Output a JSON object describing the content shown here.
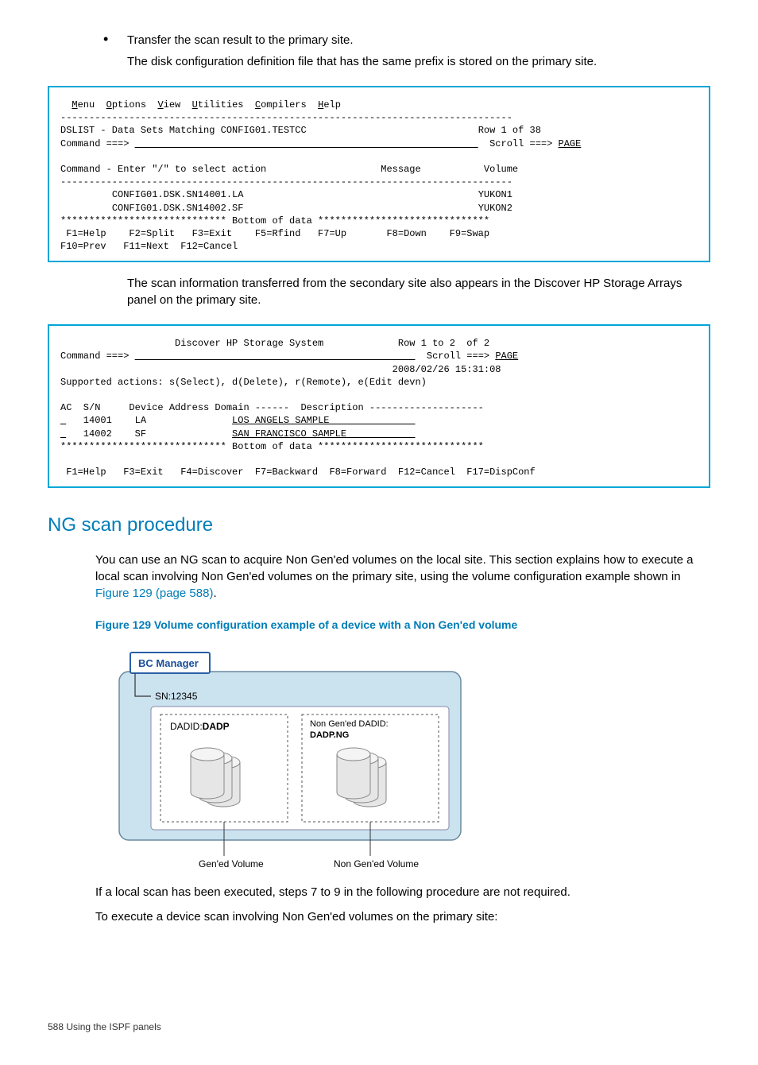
{
  "bullet": {
    "text": "Transfer the scan result to the primary site.",
    "sub": "The disk configuration definition file that has the same prefix is stored on the primary site."
  },
  "terminal1": {
    "menu": [
      "Menu",
      "Options",
      "View",
      "Utilities",
      "Compilers",
      "Help"
    ],
    "hr": "-------------------------------------------------------------------------------",
    "title": "DSLIST - Data Sets Matching CONFIG01.TESTCC",
    "rowinfo": "Row 1 of 38",
    "cmd_prompt": "Command ===>",
    "cmd_line": "                                                            ",
    "scroll": "Scroll ===>",
    "scroll_val": "PAGE",
    "action_label": "Command - Enter \"/\" to select action",
    "col_msg": "Message",
    "col_vol": "Volume",
    "rows": [
      {
        "ds": "CONFIG01.DSK.SN14001.LA",
        "vol": "YUKON1"
      },
      {
        "ds": "CONFIG01.DSK.SN14002.SF",
        "vol": "YUKON2"
      }
    ],
    "bottom": "***************************** Bottom of data ******************************",
    "fkeys1": " F1=Help    F2=Split   F3=Exit    F5=Rfind   F7=Up       F8=Down    F9=Swap",
    "fkeys2": "F10=Prev   F11=Next  F12=Cancel"
  },
  "mid_para": "The scan information transferred from the secondary site also appears in the Discover HP Storage Arrays panel on the primary site.",
  "terminal2": {
    "title": "Discover HP Storage System",
    "rowinfo": "Row 1 to 2  of 2",
    "cmd_prompt": "Command ===>",
    "scroll": "Scroll ===>",
    "scroll_val": "PAGE",
    "timestamp": "2008/02/26 15:31:08",
    "supported": "Supported actions: s(Select), d(Delete), r(Remote), e(Edit devn)",
    "header": "AC  S/N     Device Address Domain ------  Description --------------------",
    "rows": [
      {
        "pre": "   14001    LA               ",
        "desc": "LOS ANGELS SAMPLE"
      },
      {
        "pre": "   14002    SF               ",
        "desc": "SAN FRANCISCO SAMPLE"
      }
    ],
    "bottom": "***************************** Bottom of data *****************************",
    "fkeys": " F1=Help   F3=Exit   F4=Discover  F7=Backward  F8=Forward  F12=Cancel  F17=DispConf"
  },
  "section_heading": "NG scan procedure",
  "ng_para1_a": "You can use an NG scan to acquire Non Gen'ed volumes on the local site. This section explains how to execute a local scan involving Non Gen'ed volumes on the primary site, using the volume configuration example shown in ",
  "ng_para1_link": "Figure 129 (page 588)",
  "ng_para1_b": ".",
  "figure_caption": "Figure 129 Volume configuration example of a device with a Non Gen'ed volume",
  "diagram": {
    "bc_manager": "BC Manager",
    "sn": "SN:12345",
    "dadid_label": "DADID:",
    "dadid_val": "DADP",
    "nongen_label": "Non Gen'ed DADID:",
    "nongen_val": "DADP.NG",
    "gen_caption": "Gen'ed Volume",
    "nongen_caption": "Non Gen'ed Volume",
    "colors": {
      "panel_fill": "#cbe2ef",
      "panel_stroke": "#6a8aa0",
      "header_fill": "#ffffff",
      "header_stroke": "#2a5fa8",
      "inner_fill": "#ffffff",
      "dash_stroke": "#555",
      "cyl_fill": "#e6e6e6",
      "cyl_stroke": "#888",
      "line": "#333"
    }
  },
  "after1": "If a local scan has been executed, steps 7 to 9 in the following procedure are not required.",
  "after2": "To execute a device scan involving Non Gen'ed volumes on the primary site:",
  "footer": "588   Using the ISPF panels"
}
